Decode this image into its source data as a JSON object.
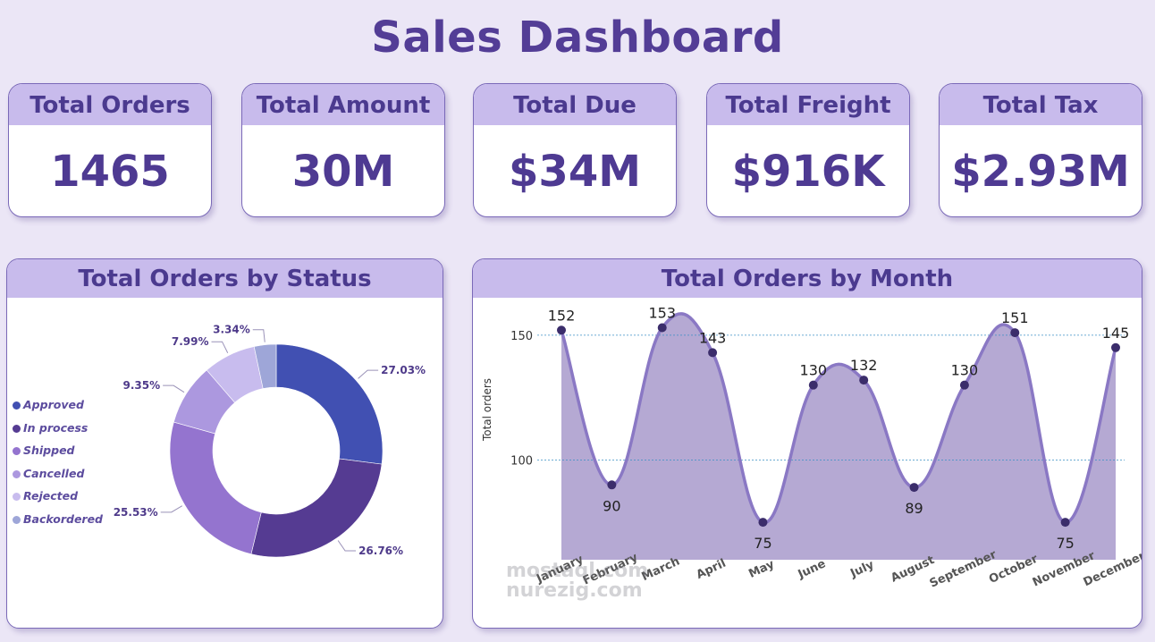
{
  "header": {
    "title": "Sales Dashboard"
  },
  "kpis": [
    {
      "label": "Total Orders",
      "value": "1465"
    },
    {
      "label": "Total Amount",
      "value": "30M"
    },
    {
      "label": "Total Due",
      "value": "$34M"
    },
    {
      "label": "Total Freight",
      "value": "$916K"
    },
    {
      "label": "Total Tax",
      "value": "$2.93M"
    }
  ],
  "watermark": {
    "line1": "mostaql.com",
    "line2": "nurezig.com"
  },
  "chart_data": [
    {
      "type": "pie",
      "title": "Total Orders by Status",
      "categories": [
        "Approved",
        "In process",
        "Shipped",
        "Cancelled",
        "Rejected",
        "Backordered"
      ],
      "values": [
        27.03,
        26.76,
        25.53,
        9.35,
        7.99,
        3.34
      ],
      "labels": [
        "27.03%",
        "26.76%",
        "25.53%",
        "9.35%",
        "7.99%",
        "3.34%"
      ],
      "colors": [
        "#4150b2",
        "#553b92",
        "#9474cf",
        "#ac98df",
        "#c8bcee",
        "#9ea6d8"
      ],
      "legend_position": "left"
    },
    {
      "type": "area",
      "title": "Total Orders by Month",
      "categories": [
        "January",
        "February",
        "March",
        "April",
        "May",
        "June",
        "July",
        "August",
        "September",
        "October",
        "November",
        "December"
      ],
      "values": [
        152,
        90,
        153,
        143,
        75,
        130,
        132,
        89,
        130,
        151,
        75,
        145
      ],
      "ylabel": "Total orders",
      "xlabel": "",
      "yticks": [
        100,
        150
      ],
      "ylim": [
        60,
        165
      ],
      "grid": true,
      "colors": {
        "fill": "#b5a9d3",
        "line": "#8a78c4",
        "marker": "#3b2d6b"
      }
    }
  ]
}
